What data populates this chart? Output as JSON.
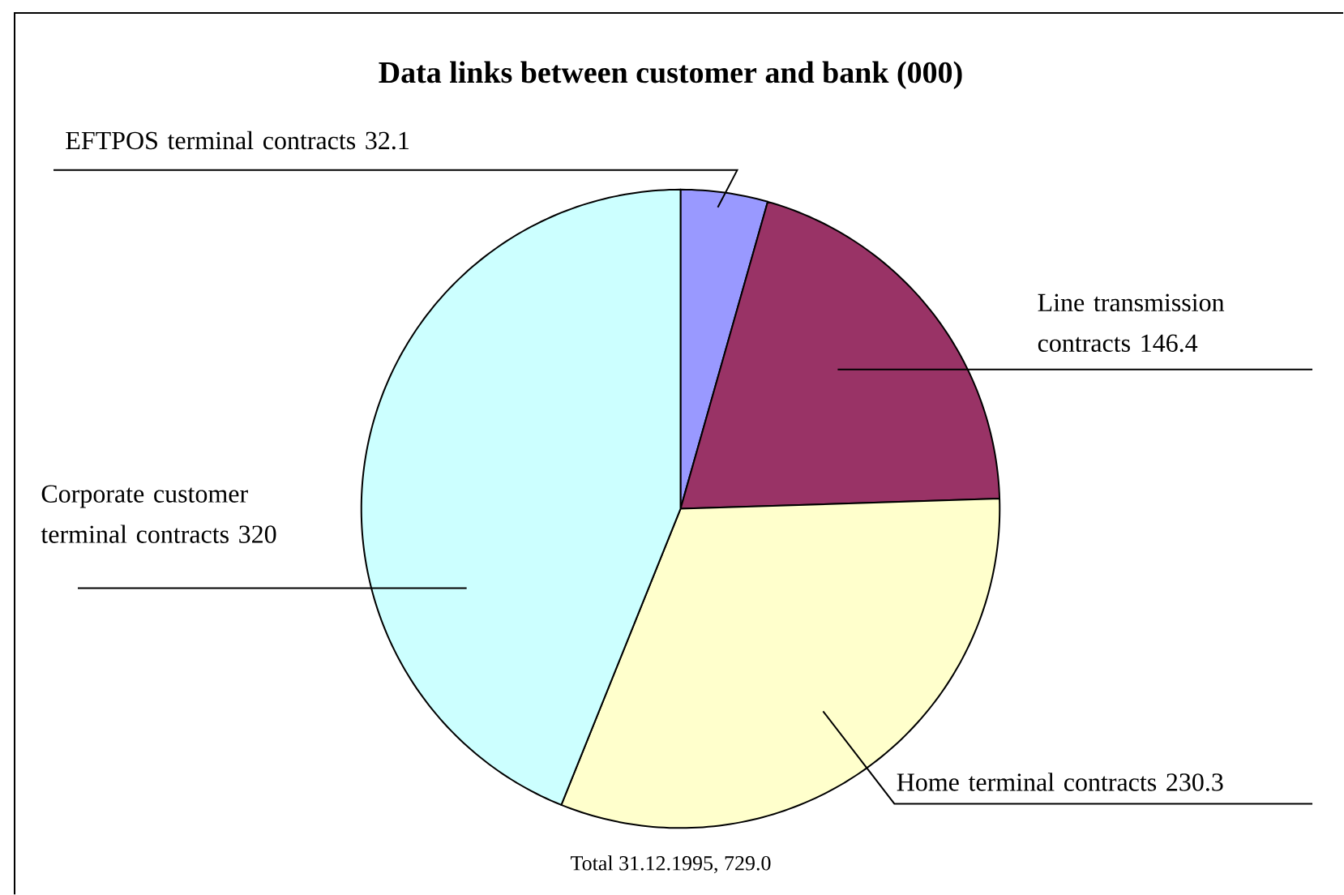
{
  "chart_data": {
    "type": "pie",
    "title": "Data links between customer and bank (000)",
    "categories": [
      "EFTPOS terminal contracts",
      "Line transmission contracts",
      "Home terminal contracts",
      "Corporate customer terminal contracts"
    ],
    "values": [
      32.1,
      146.4,
      230.3,
      320
    ],
    "value_labels": [
      "32.1",
      "146.4",
      "230.3",
      "320"
    ],
    "colors": [
      "#9999ff",
      "#993366",
      "#ffffcc",
      "#ccffff"
    ],
    "annotations": [
      "Total 31.12.1995, 729.0"
    ]
  }
}
